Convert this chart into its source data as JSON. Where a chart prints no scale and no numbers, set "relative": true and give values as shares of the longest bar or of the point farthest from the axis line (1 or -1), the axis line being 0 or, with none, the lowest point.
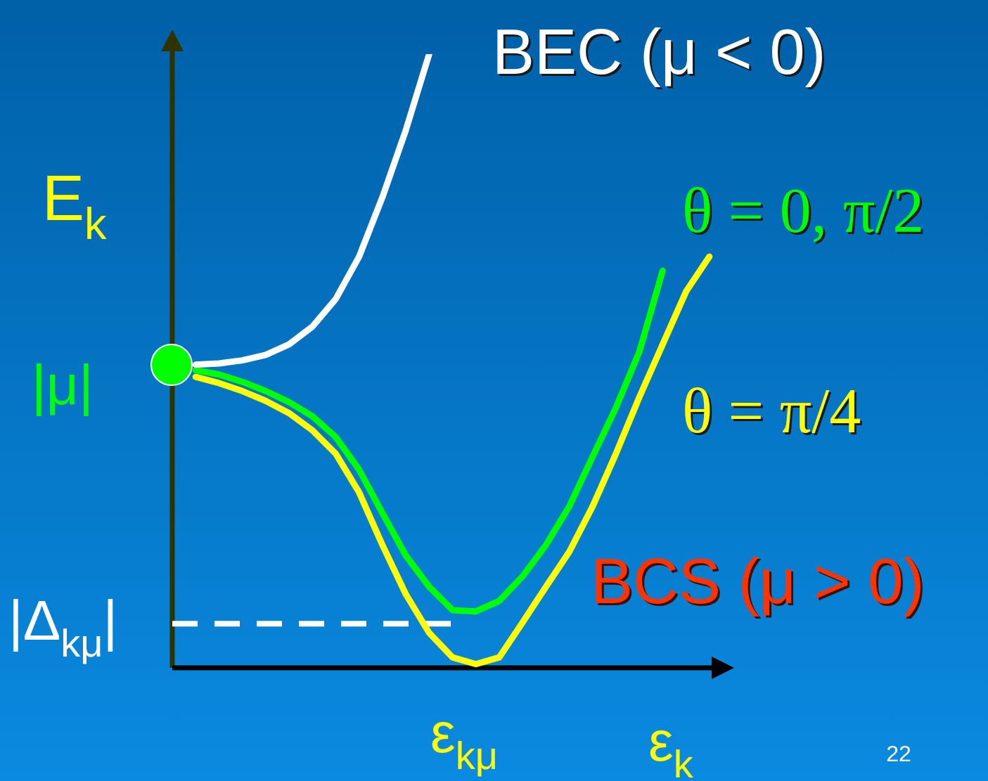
{
  "chart_data": {
    "type": "line",
    "relative": true,
    "xlabel": "ε$_{k}$",
    "ylabel": "E$_{k}$",
    "categories": [
      null,
      null,
      null,
      null,
      null,
      null,
      null,
      null,
      null,
      null,
      null,
      null,
      null,
      null,
      null,
      null,
      null,
      null,
      null,
      null,
      null,
      null,
      null,
      null,
      null
    ],
    "series": [
      {
        "name": "BEC (μ < 0)",
        "color": "#ffffff",
        "values": [
          null,
          0.494,
          0.496,
          0.501,
          0.51,
          0.527,
          0.556,
          0.601,
          0.67,
          0.767,
          0.876,
          1,
          null,
          null,
          null,
          null,
          null,
          null,
          null,
          null,
          null,
          null,
          null,
          null,
          null
        ]
      },
      {
        "name": "θ = 0, π/2",
        "color": "#00ff00",
        "values": [
          null,
          0.485,
          0.478,
          0.466,
          0.451,
          0.433,
          0.41,
          0.376,
          0.323,
          0.252,
          0.183,
          0.132,
          0.094,
          0.092,
          0.109,
          0.149,
          0.2,
          0.263,
          0.344,
          0.424,
          0.515,
          0.647,
          null,
          null,
          null
        ]
      },
      {
        "name": "θ = π/4",
        "color": "#ffff00",
        "values": [
          null,
          0.474,
          0.464,
          0.451,
          0.435,
          0.415,
          0.387,
          0.349,
          0.286,
          0.2,
          0.12,
          0.057,
          0.017,
          0.006,
          0.017,
          0.074,
          0.132,
          0.189,
          0.263,
          0.349,
          0.441,
          0.527,
          0.613,
          0.67,
          null
        ]
      },
      {
        "color": "#ffffff",
        "line_style": "dashed",
        "values": [
          0.072,
          0.072,
          0.072,
          0.072,
          0.072,
          0.072,
          0.072,
          0.072,
          0.072,
          0.072,
          0.072,
          0.072,
          0.072,
          null,
          null,
          null,
          null,
          null,
          null,
          null,
          null,
          null,
          null,
          null,
          null
        ]
      }
    ],
    "annotations": [
      "|μ|",
      "|Δ$_{kμ}$|",
      "ε$_{kμ}$",
      "BCS (μ > 0)",
      "22"
    ],
    "legend": false
  }
}
